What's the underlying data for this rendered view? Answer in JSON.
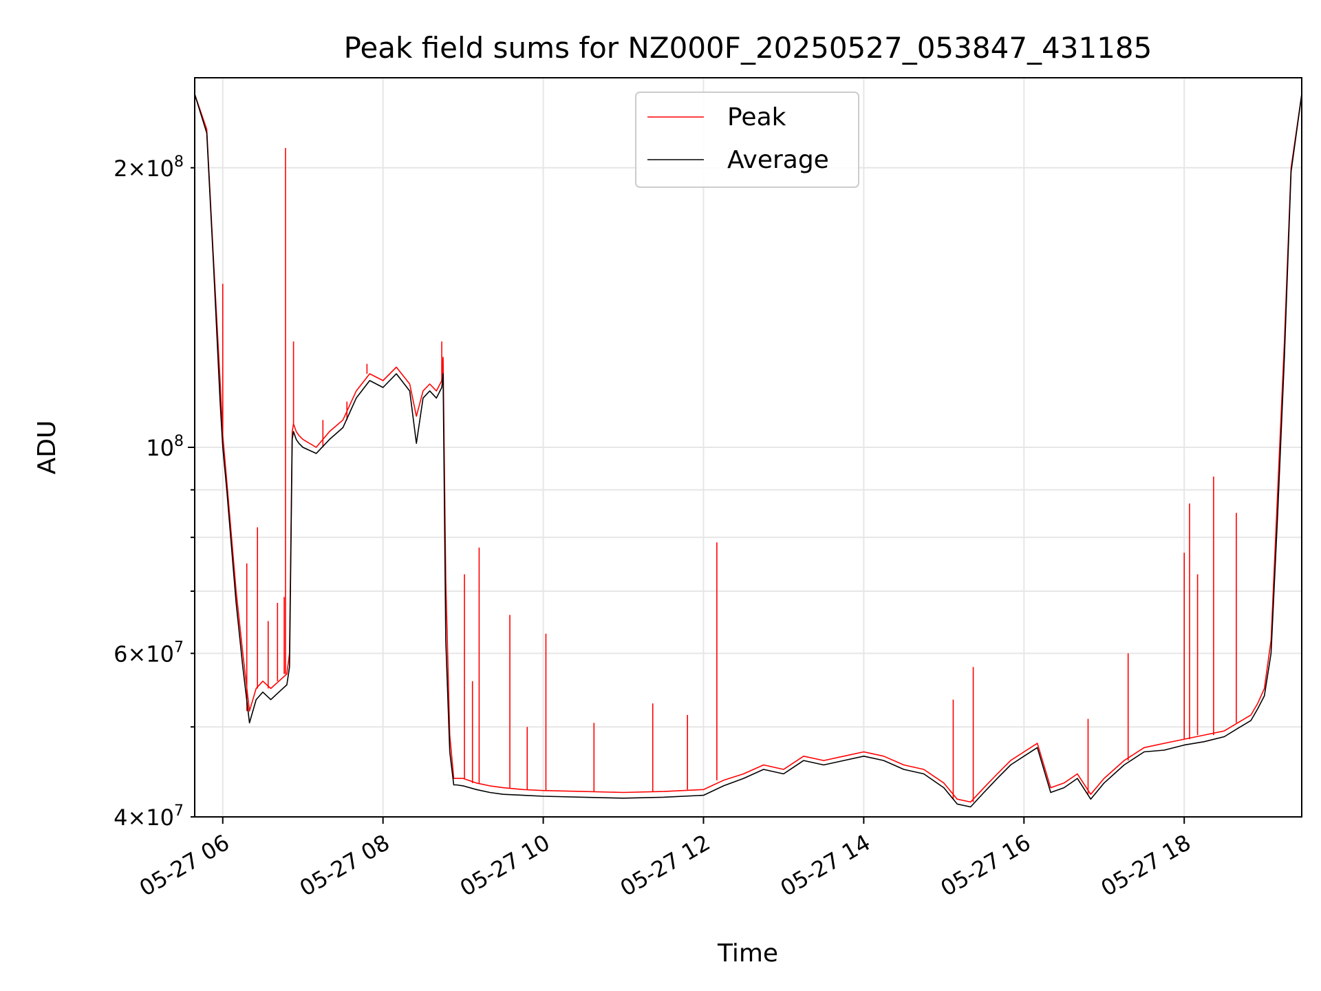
{
  "chart_data": {
    "type": "line",
    "title": "Peak field sums for NZ000F_20250527_053847_431185",
    "xlabel": "Time",
    "ylabel": "ADU",
    "yscale": "log",
    "ylim": [
      40000000,
      250000000
    ],
    "xlim": [
      "2025-05-27 05:39",
      "2025-05-27 19:28"
    ],
    "grid": true,
    "legend_position": "upper center",
    "x_ticks": [
      {
        "value": "2025-05-27 06:00",
        "label": "05-27 06"
      },
      {
        "value": "2025-05-27 08:00",
        "label": "05-27 08"
      },
      {
        "value": "2025-05-27 10:00",
        "label": "05-27 10"
      },
      {
        "value": "2025-05-27 12:00",
        "label": "05-27 12"
      },
      {
        "value": "2025-05-27 14:00",
        "label": "05-27 14"
      },
      {
        "value": "2025-05-27 16:00",
        "label": "05-27 16"
      },
      {
        "value": "2025-05-27 18:00",
        "label": "05-27 18"
      }
    ],
    "y_ticks": [
      {
        "value": 40000000,
        "base": "4",
        "exp": "7",
        "major": false
      },
      {
        "value": 50000000,
        "base": "",
        "exp": "",
        "major": false
      },
      {
        "value": 60000000,
        "base": "6",
        "exp": "7",
        "major": false
      },
      {
        "value": 70000000,
        "base": "",
        "exp": "",
        "major": false
      },
      {
        "value": 80000000,
        "base": "",
        "exp": "",
        "major": false
      },
      {
        "value": 90000000,
        "base": "",
        "exp": "",
        "major": false
      },
      {
        "value": 100000000,
        "base": "",
        "exp": "8",
        "major": true
      },
      {
        "value": 200000000,
        "base": "2",
        "exp": "8",
        "major": false
      }
    ],
    "series": [
      {
        "name": "Peak",
        "color": "#ff0000",
        "x": [
          "2025-05-27 05:39",
          "2025-05-27 05:48",
          "2025-05-27 05:53",
          "2025-05-27 05:58",
          "2025-05-27 06:00",
          "2025-05-27 06:03",
          "2025-05-27 06:10",
          "2025-05-27 06:15",
          "2025-05-27 06:20",
          "2025-05-27 06:25",
          "2025-05-27 06:30",
          "2025-05-27 06:36",
          "2025-05-27 06:42",
          "2025-05-27 06:48",
          "2025-05-27 06:50",
          "2025-05-27 06:52",
          "2025-05-27 06:53",
          "2025-05-27 06:55",
          "2025-05-27 06:57",
          "2025-05-27 07:00",
          "2025-05-27 07:10",
          "2025-05-27 07:20",
          "2025-05-27 07:30",
          "2025-05-27 07:40",
          "2025-05-27 07:50",
          "2025-05-27 08:00",
          "2025-05-27 08:10",
          "2025-05-27 08:20",
          "2025-05-27 08:25",
          "2025-05-27 08:30",
          "2025-05-27 08:35",
          "2025-05-27 08:40",
          "2025-05-27 08:44",
          "2025-05-27 08:45",
          "2025-05-27 08:47",
          "2025-05-27 08:50",
          "2025-05-27 08:53",
          "2025-05-27 08:55",
          "2025-05-27 09:00",
          "2025-05-27 09:10",
          "2025-05-27 09:20",
          "2025-05-27 09:30",
          "2025-05-27 09:45",
          "2025-05-27 10:00",
          "2025-05-27 10:30",
          "2025-05-27 11:00",
          "2025-05-27 11:30",
          "2025-05-27 12:00",
          "2025-05-27 12:15",
          "2025-05-27 12:30",
          "2025-05-27 12:45",
          "2025-05-27 13:00",
          "2025-05-27 13:15",
          "2025-05-27 13:30",
          "2025-05-27 13:45",
          "2025-05-27 14:00",
          "2025-05-27 14:15",
          "2025-05-27 14:30",
          "2025-05-27 14:45",
          "2025-05-27 15:00",
          "2025-05-27 15:10",
          "2025-05-27 15:20",
          "2025-05-27 15:30",
          "2025-05-27 15:40",
          "2025-05-27 15:50",
          "2025-05-27 16:00",
          "2025-05-27 16:10",
          "2025-05-27 16:20",
          "2025-05-27 16:30",
          "2025-05-27 16:40",
          "2025-05-27 16:50",
          "2025-05-27 17:00",
          "2025-05-27 17:15",
          "2025-05-27 17:30",
          "2025-05-27 17:45",
          "2025-05-27 18:00",
          "2025-05-27 18:15",
          "2025-05-27 18:30",
          "2025-05-27 18:40",
          "2025-05-27 18:50",
          "2025-05-27 18:55",
          "2025-05-27 19:00",
          "2025-05-27 19:05",
          "2025-05-27 19:10",
          "2025-05-27 19:15",
          "2025-05-27 19:20",
          "2025-05-27 19:28"
        ],
        "values": [
          240000000,
          220000000,
          160000000,
          118000000,
          103000000,
          92000000,
          70000000,
          60000000,
          52000000,
          55000000,
          56000000,
          55000000,
          56000000,
          57000000,
          60000000,
          104000000,
          106000000,
          104000000,
          103000000,
          102000000,
          100000000,
          104000000,
          107000000,
          115000000,
          120000000,
          118000000,
          122000000,
          117000000,
          108000000,
          115000000,
          117000000,
          115000000,
          118000000,
          125000000,
          72000000,
          49000000,
          44000000,
          44000000,
          44000000,
          43500000,
          43200000,
          43000000,
          42800000,
          42700000,
          42600000,
          42500000,
          42600000,
          42800000,
          43800000,
          44500000,
          45500000,
          45000000,
          46500000,
          46000000,
          46500000,
          47000000,
          46500000,
          45500000,
          45000000,
          43500000,
          41800000,
          41500000,
          43000000,
          44500000,
          46000000,
          47000000,
          48000000,
          43000000,
          43500000,
          44500000,
          42300000,
          44000000,
          46000000,
          47500000,
          48000000,
          48500000,
          49000000,
          49500000,
          50500000,
          51500000,
          53000000,
          55000000,
          62000000,
          90000000,
          130000000,
          200000000,
          240000000
        ]
      },
      {
        "name": "Average",
        "color": "#000000",
        "x": [
          "2025-05-27 05:39",
          "2025-05-27 05:48",
          "2025-05-27 05:53",
          "2025-05-27 05:58",
          "2025-05-27 06:00",
          "2025-05-27 06:03",
          "2025-05-27 06:10",
          "2025-05-27 06:15",
          "2025-05-27 06:20",
          "2025-05-27 06:25",
          "2025-05-27 06:30",
          "2025-05-27 06:36",
          "2025-05-27 06:42",
          "2025-05-27 06:48",
          "2025-05-27 06:50",
          "2025-05-27 06:52",
          "2025-05-27 06:53",
          "2025-05-27 06:55",
          "2025-05-27 06:57",
          "2025-05-27 07:00",
          "2025-05-27 07:10",
          "2025-05-27 07:20",
          "2025-05-27 07:30",
          "2025-05-27 07:40",
          "2025-05-27 07:50",
          "2025-05-27 08:00",
          "2025-05-27 08:10",
          "2025-05-27 08:20",
          "2025-05-27 08:25",
          "2025-05-27 08:30",
          "2025-05-27 08:35",
          "2025-05-27 08:40",
          "2025-05-27 08:44",
          "2025-05-27 08:45",
          "2025-05-27 08:47",
          "2025-05-27 08:50",
          "2025-05-27 08:53",
          "2025-05-27 08:55",
          "2025-05-27 09:00",
          "2025-05-27 09:10",
          "2025-05-27 09:20",
          "2025-05-27 09:30",
          "2025-05-27 09:45",
          "2025-05-27 10:00",
          "2025-05-27 10:30",
          "2025-05-27 11:00",
          "2025-05-27 11:30",
          "2025-05-27 12:00",
          "2025-05-27 12:15",
          "2025-05-27 12:30",
          "2025-05-27 12:45",
          "2025-05-27 13:00",
          "2025-05-27 13:15",
          "2025-05-27 13:30",
          "2025-05-27 13:45",
          "2025-05-27 14:00",
          "2025-05-27 14:15",
          "2025-05-27 14:30",
          "2025-05-27 14:45",
          "2025-05-27 15:00",
          "2025-05-27 15:10",
          "2025-05-27 15:20",
          "2025-05-27 15:30",
          "2025-05-27 15:40",
          "2025-05-27 15:50",
          "2025-05-27 16:00",
          "2025-05-27 16:10",
          "2025-05-27 16:20",
          "2025-05-27 16:30",
          "2025-05-27 16:40",
          "2025-05-27 16:50",
          "2025-05-27 17:00",
          "2025-05-27 17:15",
          "2025-05-27 17:30",
          "2025-05-27 17:45",
          "2025-05-27 18:00",
          "2025-05-27 18:15",
          "2025-05-27 18:30",
          "2025-05-27 18:40",
          "2025-05-27 18:50",
          "2025-05-27 18:55",
          "2025-05-27 19:00",
          "2025-05-27 19:05",
          "2025-05-27 19:10",
          "2025-05-27 19:15",
          "2025-05-27 19:20",
          "2025-05-27 19:28"
        ],
        "values": [
          240000000,
          218000000,
          158000000,
          112000000,
          100000000,
          90000000,
          68000000,
          58000000,
          50500000,
          53500000,
          54500000,
          53500000,
          54500000,
          55500000,
          58000000,
          102000000,
          104000000,
          102000000,
          101000000,
          100000000,
          98500000,
          102000000,
          105000000,
          113000000,
          118000000,
          116000000,
          120000000,
          115000000,
          101000000,
          113000000,
          115000000,
          113000000,
          116000000,
          120000000,
          62000000,
          47000000,
          43300000,
          43300000,
          43200000,
          42800000,
          42500000,
          42300000,
          42200000,
          42100000,
          42000000,
          41900000,
          42000000,
          42200000,
          43200000,
          44000000,
          45000000,
          44500000,
          46000000,
          45500000,
          46000000,
          46500000,
          46000000,
          45000000,
          44500000,
          43000000,
          41300000,
          41000000,
          42500000,
          44000000,
          45500000,
          46500000,
          47500000,
          42500000,
          43000000,
          44000000,
          41800000,
          43500000,
          45500000,
          47000000,
          47200000,
          47800000,
          48200000,
          48800000,
          49800000,
          50800000,
          52300000,
          54000000,
          60000000,
          85000000,
          125000000,
          198000000,
          240000000
        ]
      }
    ],
    "spikes": [
      {
        "x": "2025-05-27 06:00",
        "value": 150000000
      },
      {
        "x": "2025-05-27 06:18",
        "value": 75000000
      },
      {
        "x": "2025-05-27 06:26",
        "value": 82000000
      },
      {
        "x": "2025-05-27 06:34",
        "value": 65000000
      },
      {
        "x": "2025-05-27 06:41",
        "value": 68000000
      },
      {
        "x": "2025-05-27 06:46",
        "value": 69000000
      },
      {
        "x": "2025-05-27 06:47",
        "value": 210000000
      },
      {
        "x": "2025-05-27 06:53",
        "value": 130000000
      },
      {
        "x": "2025-05-27 07:15",
        "value": 107000000
      },
      {
        "x": "2025-05-27 07:33",
        "value": 112000000
      },
      {
        "x": "2025-05-27 07:48",
        "value": 123000000
      },
      {
        "x": "2025-05-27 08:44",
        "value": 130000000
      },
      {
        "x": "2025-05-27 09:01",
        "value": 73000000
      },
      {
        "x": "2025-05-27 09:07",
        "value": 56000000
      },
      {
        "x": "2025-05-27 09:12",
        "value": 78000000
      },
      {
        "x": "2025-05-27 09:35",
        "value": 66000000
      },
      {
        "x": "2025-05-27 09:48",
        "value": 50000000
      },
      {
        "x": "2025-05-27 10:02",
        "value": 63000000
      },
      {
        "x": "2025-05-27 10:38",
        "value": 50500000
      },
      {
        "x": "2025-05-27 11:22",
        "value": 53000000
      },
      {
        "x": "2025-05-27 11:48",
        "value": 51500000
      },
      {
        "x": "2025-05-27 12:10",
        "value": 79000000
      },
      {
        "x": "2025-05-27 15:07",
        "value": 53500000
      },
      {
        "x": "2025-05-27 15:22",
        "value": 58000000
      },
      {
        "x": "2025-05-27 16:48",
        "value": 51000000
      },
      {
        "x": "2025-05-27 17:18",
        "value": 60000000
      },
      {
        "x": "2025-05-27 18:00",
        "value": 77000000
      },
      {
        "x": "2025-05-27 18:04",
        "value": 87000000
      },
      {
        "x": "2025-05-27 18:10",
        "value": 73000000
      },
      {
        "x": "2025-05-27 18:22",
        "value": 93000000
      },
      {
        "x": "2025-05-27 18:39",
        "value": 85000000
      }
    ]
  }
}
